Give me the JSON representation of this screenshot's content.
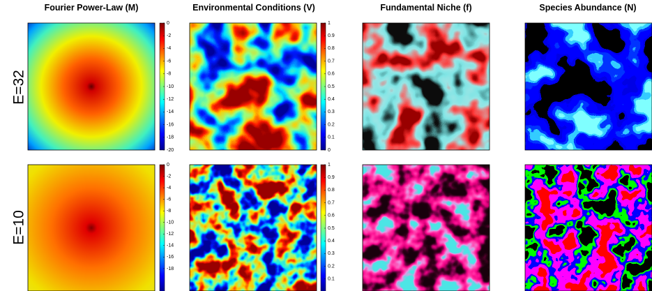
{
  "column_titles": [
    "Fourier Power-Law (M)",
    "Environmental Conditions (V)",
    "Fundamental Niche (f)",
    "Species Abundance (N)"
  ],
  "rows": [
    {
      "label": "E=32",
      "colorbars": [
        {
          "lim": [
            -20,
            0
          ],
          "ticks": [
            0,
            -2,
            -4,
            -6,
            -8,
            -10,
            -12,
            -14,
            -16,
            -18,
            -20
          ]
        },
        {
          "lim": [
            0,
            1
          ],
          "ticks": [
            1,
            0.9,
            0.8,
            0.7,
            0.6,
            0.5,
            0.4,
            0.3,
            0.2,
            0.1,
            0
          ]
        }
      ]
    },
    {
      "label": "E=10",
      "colorbars": [
        {
          "lim": [
            -22,
            0
          ],
          "ticks": [
            0,
            -2,
            -4,
            -6,
            -8,
            -10,
            -12,
            -14,
            -16,
            -18
          ]
        },
        {
          "lim": [
            0,
            1
          ],
          "ticks": [
            1,
            0.9,
            0.8,
            0.7,
            0.6,
            0.5,
            0.4,
            0.3,
            0.2,
            0.1
          ]
        }
      ]
    }
  ]
}
